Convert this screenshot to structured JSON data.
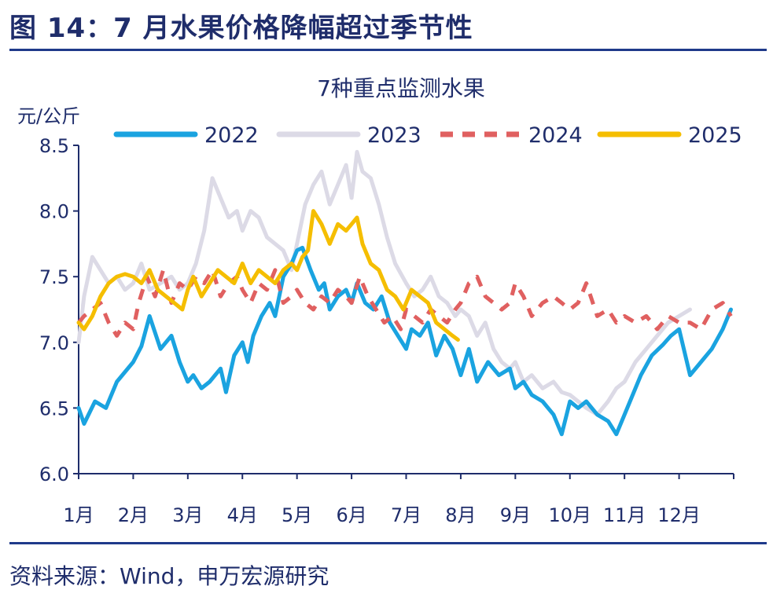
{
  "figure_title": "图 14：7 月水果价格降幅超过季节性",
  "source": "资料来源：Wind，申万宏源研究",
  "chart_data": {
    "type": "line",
    "title": "7种重点监测水果",
    "ylabel": "元/公斤",
    "ylim": [
      6.0,
      8.5
    ],
    "yticks": [
      "6.0",
      "6.5",
      "7.0",
      "7.5",
      "8.0",
      "8.5"
    ],
    "categories": [
      "1月",
      "2月",
      "3月",
      "4月",
      "5月",
      "6月",
      "7月",
      "8月",
      "9月",
      "10月",
      "11月",
      "12月"
    ],
    "legend_position": "top",
    "grid": false,
    "series": [
      {
        "name": "2022",
        "color": "#1aa3e0",
        "dash": "solid",
        "x": [
          1.0,
          1.1,
          1.3,
          1.5,
          1.7,
          2.0,
          2.15,
          2.3,
          2.5,
          2.7,
          2.85,
          3.0,
          3.1,
          3.25,
          3.4,
          3.6,
          3.7,
          3.85,
          4.0,
          4.1,
          4.2,
          4.35,
          4.5,
          4.6,
          4.75,
          4.9,
          5.0,
          5.1,
          5.25,
          5.4,
          5.5,
          5.6,
          5.75,
          5.9,
          6.0,
          6.1,
          6.25,
          6.4,
          6.55,
          6.7,
          6.85,
          7.0,
          7.1,
          7.25,
          7.4,
          7.55,
          7.7,
          7.85,
          8.0,
          8.15,
          8.3,
          8.5,
          8.7,
          8.9,
          9.0,
          9.15,
          9.3,
          9.5,
          9.7,
          9.85,
          10.0,
          10.15,
          10.3,
          10.5,
          10.7,
          10.85,
          11.0,
          11.15,
          11.3,
          11.5,
          11.7,
          11.85,
          12.0,
          12.2,
          12.4,
          12.6,
          12.8,
          12.95
        ],
        "values": [
          6.5,
          6.38,
          6.55,
          6.5,
          6.7,
          6.85,
          6.97,
          7.2,
          6.95,
          7.05,
          6.85,
          6.7,
          6.75,
          6.65,
          6.7,
          6.8,
          6.62,
          6.9,
          7.0,
          6.85,
          7.05,
          7.2,
          7.3,
          7.2,
          7.5,
          7.6,
          7.7,
          7.72,
          7.55,
          7.4,
          7.45,
          7.25,
          7.35,
          7.4,
          7.3,
          7.45,
          7.3,
          7.25,
          7.35,
          7.15,
          7.05,
          6.95,
          7.1,
          7.05,
          7.15,
          6.9,
          7.05,
          6.95,
          6.75,
          6.95,
          6.7,
          6.85,
          6.75,
          6.8,
          6.65,
          6.7,
          6.6,
          6.55,
          6.45,
          6.3,
          6.55,
          6.5,
          6.55,
          6.45,
          6.4,
          6.3,
          6.45,
          6.6,
          6.75,
          6.9,
          6.98,
          7.05,
          7.1,
          6.75,
          6.85,
          6.95,
          7.1,
          7.25
        ]
      },
      {
        "name": "2023",
        "color": "#dcdae6",
        "dash": "solid",
        "x": [
          1.0,
          1.1,
          1.25,
          1.4,
          1.55,
          1.7,
          1.85,
          2.0,
          2.15,
          2.3,
          2.5,
          2.7,
          2.85,
          3.0,
          3.15,
          3.3,
          3.45,
          3.6,
          3.75,
          3.9,
          4.0,
          4.15,
          4.3,
          4.45,
          4.6,
          4.75,
          4.9,
          5.0,
          5.15,
          5.3,
          5.45,
          5.6,
          5.75,
          5.9,
          6.0,
          6.1,
          6.2,
          6.35,
          6.5,
          6.65,
          6.8,
          7.0,
          7.15,
          7.3,
          7.45,
          7.6,
          7.75,
          7.9,
          8.0,
          8.15,
          8.3,
          8.45,
          8.6,
          8.75,
          8.9,
          9.0,
          9.15,
          9.3,
          9.5,
          9.7,
          9.85,
          10.0,
          10.15,
          10.3,
          10.5,
          10.7,
          10.85,
          11.0,
          11.2,
          11.4,
          11.6,
          11.8,
          12.0,
          12.2
        ],
        "values": [
          7.0,
          7.35,
          7.65,
          7.55,
          7.45,
          7.5,
          7.4,
          7.45,
          7.6,
          7.4,
          7.45,
          7.5,
          7.4,
          7.45,
          7.6,
          7.85,
          8.25,
          8.1,
          7.95,
          8.0,
          7.85,
          8.0,
          7.95,
          7.8,
          7.75,
          7.7,
          7.55,
          7.75,
          8.05,
          8.2,
          8.3,
          8.05,
          8.2,
          8.35,
          8.1,
          8.45,
          8.3,
          8.25,
          8.05,
          7.8,
          7.6,
          7.45,
          7.35,
          7.4,
          7.5,
          7.35,
          7.3,
          7.2,
          7.25,
          7.2,
          7.05,
          7.15,
          6.95,
          6.85,
          6.8,
          6.85,
          6.7,
          6.75,
          6.65,
          6.7,
          6.62,
          6.6,
          6.55,
          6.5,
          6.45,
          6.55,
          6.65,
          6.7,
          6.85,
          6.95,
          7.05,
          7.15,
          7.2,
          7.25
        ]
      },
      {
        "name": "2024",
        "color": "#e06060",
        "dash": "dash",
        "x": [
          1.0,
          1.1,
          1.25,
          1.4,
          1.55,
          1.7,
          1.85,
          2.0,
          2.1,
          2.25,
          2.4,
          2.55,
          2.7,
          2.85,
          3.0,
          3.15,
          3.3,
          3.45,
          3.6,
          3.75,
          3.9,
          4.0,
          4.15,
          4.3,
          4.45,
          4.6,
          4.75,
          4.9,
          5.0,
          5.15,
          5.3,
          5.45,
          5.6,
          5.75,
          5.9,
          6.0,
          6.15,
          6.3,
          6.45,
          6.6,
          6.75,
          6.9,
          7.0,
          7.15,
          7.3,
          7.45,
          7.6,
          7.75,
          7.9,
          8.0,
          8.15,
          8.3,
          8.45,
          8.6,
          8.75,
          8.9,
          9.0,
          9.15,
          9.3,
          9.5,
          9.7,
          9.85,
          10.0,
          10.15,
          10.3,
          10.5,
          10.7,
          10.85,
          11.0,
          11.2,
          11.4,
          11.6,
          11.8,
          12.0,
          12.2,
          12.4,
          12.6,
          12.8,
          12.95
        ],
        "values": [
          7.15,
          7.2,
          7.25,
          7.3,
          7.15,
          7.05,
          7.15,
          7.1,
          7.3,
          7.5,
          7.35,
          7.55,
          7.3,
          7.45,
          7.4,
          7.5,
          7.45,
          7.55,
          7.35,
          7.45,
          7.5,
          7.4,
          7.3,
          7.45,
          7.4,
          7.55,
          7.3,
          7.35,
          7.4,
          7.3,
          7.25,
          7.35,
          7.3,
          7.4,
          7.35,
          7.3,
          7.5,
          7.35,
          7.25,
          7.15,
          7.2,
          7.1,
          7.25,
          7.2,
          7.15,
          7.25,
          7.2,
          7.15,
          7.25,
          7.3,
          7.45,
          7.5,
          7.35,
          7.3,
          7.25,
          7.3,
          7.45,
          7.35,
          7.2,
          7.3,
          7.35,
          7.3,
          7.25,
          7.3,
          7.45,
          7.2,
          7.25,
          7.15,
          7.2,
          7.15,
          7.2,
          7.1,
          7.2,
          7.15,
          7.15,
          7.1,
          7.25,
          7.3,
          7.2
        ]
      },
      {
        "name": "2025",
        "color": "#f5be00",
        "dash": "solid",
        "x": [
          1.0,
          1.1,
          1.25,
          1.4,
          1.55,
          1.7,
          1.85,
          2.0,
          2.15,
          2.3,
          2.45,
          2.6,
          2.75,
          2.9,
          3.0,
          3.1,
          3.25,
          3.4,
          3.55,
          3.7,
          3.85,
          4.0,
          4.15,
          4.3,
          4.45,
          4.6,
          4.75,
          4.9,
          5.0,
          5.1,
          5.2,
          5.3,
          5.45,
          5.6,
          5.75,
          5.9,
          6.0,
          6.1,
          6.2,
          6.35,
          6.5,
          6.65,
          6.8,
          6.95,
          7.1,
          7.25,
          7.4,
          7.55,
          7.7,
          7.85,
          7.95
        ],
        "values": [
          7.15,
          7.1,
          7.2,
          7.35,
          7.45,
          7.5,
          7.52,
          7.5,
          7.45,
          7.55,
          7.4,
          7.35,
          7.3,
          7.25,
          7.4,
          7.5,
          7.35,
          7.45,
          7.55,
          7.5,
          7.45,
          7.6,
          7.45,
          7.55,
          7.5,
          7.45,
          7.55,
          7.6,
          7.55,
          7.65,
          7.7,
          8.0,
          7.9,
          7.75,
          7.9,
          7.85,
          7.9,
          7.95,
          7.75,
          7.6,
          7.55,
          7.4,
          7.35,
          7.25,
          7.4,
          7.35,
          7.3,
          7.15,
          7.1,
          7.05,
          7.02
        ]
      }
    ]
  }
}
